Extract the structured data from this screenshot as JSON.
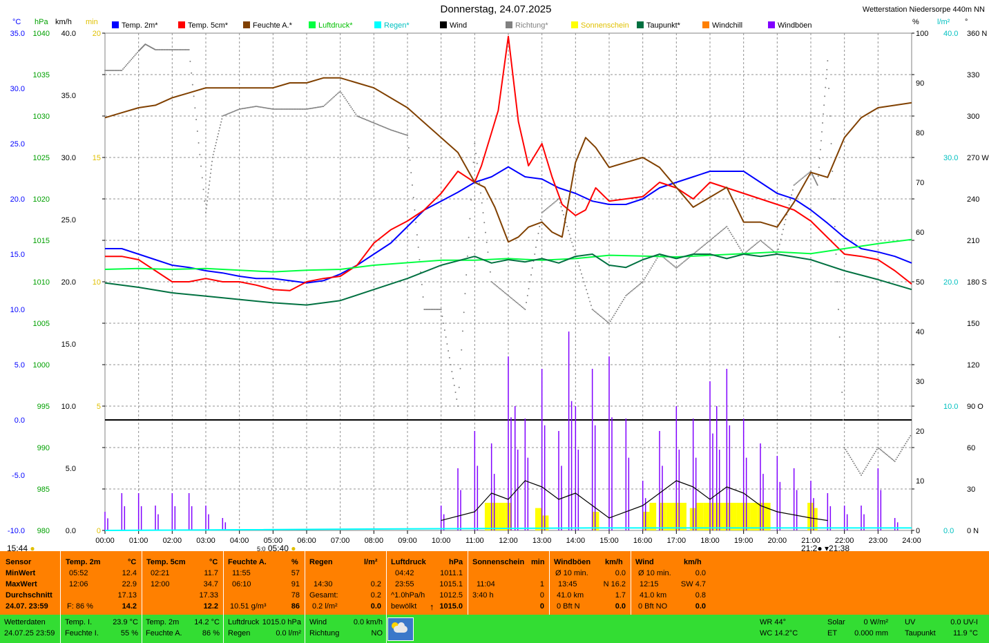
{
  "header": {
    "title": "Donnerstag, 24.07.2025",
    "station": "Wetterstation Niedersorpe 440m NN"
  },
  "unit_labels": {
    "c": "°C",
    "hpa": "hPa",
    "kmh": "km/h",
    "min": "min",
    "pct": "%",
    "lm2": "l/m²",
    "deg": "°"
  },
  "legend": [
    {
      "label": "Temp. 2m*",
      "color": "#0000ff"
    },
    {
      "label": "Temp. 5cm*",
      "color": "#ff0000"
    },
    {
      "label": "Feuchte A.*",
      "color": "#804000"
    },
    {
      "label": "Luftdruck*",
      "color": "#00ff40"
    },
    {
      "label": "Regen*",
      "color": "#00ffff"
    },
    {
      "label": "Wind",
      "color": "#000000"
    },
    {
      "label": "Richtung*",
      "color": "#808080"
    },
    {
      "label": "Sonnenschein",
      "color": "#ffff00"
    },
    {
      "label": "Taupunkt*",
      "color": "#007040"
    },
    {
      "label": "Windchill",
      "color": "#ff8000"
    },
    {
      "label": "Windböen",
      "color": "#8000ff"
    }
  ],
  "sun_marks": {
    "left_time": "15:44",
    "sunrise": "05:40",
    "sunrise_small": "5:0",
    "sunset": "21:38",
    "sunset_small": "21:2"
  },
  "chart_data": {
    "type": "line",
    "x_ticks": [
      "00:00",
      "01:00",
      "02:00",
      "03:00",
      "04:00",
      "05:00",
      "06:00",
      "07:00",
      "08:00",
      "09:00",
      "10:00",
      "11:00",
      "12:00",
      "13:00",
      "14:00",
      "15:00",
      "16:00",
      "17:00",
      "18:00",
      "19:00",
      "20:00",
      "21:00",
      "22:00",
      "23:00",
      "24:00"
    ],
    "axes": {
      "temp_c": {
        "range": [
          -10,
          35
        ],
        "ticks": [
          "35.0",
          "30.0",
          "25.0",
          "20.0",
          "15.0",
          "10.0",
          "5.0",
          "0.0",
          "-5.0",
          "-10.0"
        ],
        "color": "#0000ff"
      },
      "pressure_hpa": {
        "range": [
          980,
          1040
        ],
        "ticks": [
          "1040",
          "1035",
          "1030",
          "1025",
          "1020",
          "1015",
          "1010",
          "1005",
          "1000",
          "995",
          "990",
          "985",
          "980"
        ],
        "color": "#00a000"
      },
      "wind_kmh": {
        "range": [
          0,
          40
        ],
        "ticks": [
          "40.0",
          "35.0",
          "30.0",
          "25.0",
          "20.0",
          "15.0",
          "10.0",
          "5.0",
          "0.0"
        ],
        "color": "#000000"
      },
      "sun_min": {
        "range": [
          0,
          20
        ],
        "ticks": [
          "20",
          "15",
          "10",
          "5",
          "0"
        ],
        "color": "#e0c000"
      },
      "humidity_pct": {
        "range": [
          0,
          100
        ],
        "ticks": [
          "100",
          "90",
          "80",
          "70",
          "60",
          "50",
          "40",
          "30",
          "20",
          "10",
          "0"
        ],
        "color": "#000000"
      },
      "rain_lm2": {
        "range": [
          0,
          40
        ],
        "ticks": [
          "40.0",
          "30.0",
          "20.0",
          "10.0",
          "0.0"
        ],
        "color": "#00c0c0"
      },
      "direction_deg": {
        "range": [
          0,
          360
        ],
        "ticks": [
          "360 N",
          "330",
          "300",
          "270 W",
          "240",
          "210",
          "180 S",
          "150",
          "120",
          "90 O",
          "60",
          "30",
          "0 N"
        ],
        "color": "#000000"
      }
    },
    "series": [
      {
        "name": "Temp. 2m*",
        "axis": "temp_c",
        "color": "#0000ff",
        "x": [
          0,
          0.5,
          1,
          1.5,
          2,
          2.5,
          3,
          3.5,
          4,
          4.5,
          5,
          5.5,
          6,
          6.5,
          7,
          7.5,
          8,
          8.5,
          9,
          9.5,
          10,
          10.5,
          11,
          11.5,
          12,
          12.5,
          13,
          13.5,
          14,
          14.5,
          15,
          15.5,
          16,
          16.5,
          17,
          17.5,
          18,
          18.5,
          19,
          19.5,
          20,
          20.5,
          21,
          21.5,
          22,
          22.5,
          23,
          23.5,
          24
        ],
        "y": [
          15.5,
          15.5,
          15,
          14.5,
          14,
          13.8,
          13.5,
          13.3,
          13,
          12.8,
          12.8,
          12.6,
          12.4,
          12.6,
          13.2,
          14,
          15,
          16,
          17.5,
          19,
          19.8,
          20.6,
          21.5,
          22,
          22.9,
          22,
          21.8,
          21,
          20.5,
          19.8,
          19.5,
          19.5,
          20,
          21,
          21.5,
          22,
          22.5,
          22.5,
          22.5,
          21.5,
          20.5,
          20,
          19,
          17.8,
          16.5,
          15.5,
          15.2,
          14.8,
          14.2
        ]
      },
      {
        "name": "Temp. 5cm*",
        "axis": "temp_c",
        "color": "#ff0000",
        "x": [
          0,
          0.5,
          1,
          1.5,
          2,
          2.5,
          3,
          3.5,
          4,
          4.5,
          5,
          5.5,
          6,
          6.5,
          7,
          7.5,
          8,
          8.5,
          9,
          9.5,
          10,
          10.5,
          11,
          11.2,
          11.5,
          11.7,
          12,
          12.3,
          12.6,
          13,
          13.3,
          13.6,
          14,
          14.3,
          14.6,
          15,
          15.5,
          16,
          16.5,
          17,
          17.5,
          18,
          18.5,
          19,
          19.5,
          20,
          20.5,
          21,
          21.5,
          22,
          22.5,
          23,
          23.5,
          24
        ],
        "y": [
          14.8,
          14.8,
          14.5,
          13.5,
          12.5,
          12.5,
          12.8,
          12.5,
          12.5,
          12.2,
          11.8,
          11.7,
          12.5,
          12.8,
          13,
          14,
          16,
          17.2,
          18,
          19,
          20.5,
          22.5,
          21.5,
          23,
          26,
          28,
          34.7,
          27,
          23,
          25,
          22,
          19.5,
          18.5,
          19,
          21,
          19.8,
          20,
          20.2,
          21.5,
          21,
          20,
          21.5,
          21,
          20.5,
          20,
          19.5,
          19,
          18,
          16.5,
          15,
          14.8,
          14.5,
          13.5,
          12.3
        ]
      },
      {
        "name": "Feuchte A.*",
        "axis": "humidity_pct",
        "color": "#804000",
        "x": [
          0,
          0.5,
          1,
          1.5,
          2,
          2.5,
          3,
          3.5,
          4,
          4.5,
          5,
          5.5,
          6,
          6.5,
          7,
          7.5,
          8,
          8.5,
          9,
          9.5,
          10,
          10.5,
          11,
          11.3,
          11.6,
          12,
          12.3,
          12.6,
          13,
          13.3,
          13.6,
          14,
          14.3,
          14.6,
          15,
          15.5,
          16,
          16.5,
          17,
          17.5,
          18,
          18.5,
          19,
          19.5,
          20,
          20.5,
          21,
          21.5,
          22,
          22.5,
          23,
          23.5,
          24
        ],
        "y": [
          83,
          84,
          85,
          85.5,
          87,
          88,
          89,
          89,
          89,
          89,
          89,
          90,
          90,
          91,
          91,
          90,
          89,
          87,
          85,
          82,
          79,
          76,
          70,
          69,
          65,
          58,
          59,
          61,
          62,
          60,
          59,
          74,
          79,
          77,
          73,
          74,
          75,
          73,
          69,
          65,
          67,
          69,
          62,
          62,
          61,
          66,
          72,
          71,
          79,
          83,
          85,
          85.5,
          86
        ]
      },
      {
        "name": "Luftdruck*",
        "axis": "pressure_hpa",
        "color": "#00ff40",
        "x": [
          0,
          1,
          2,
          3,
          4,
          5,
          6,
          7,
          8,
          9,
          10,
          11,
          12,
          13,
          14,
          15,
          16,
          17,
          18,
          19,
          20,
          21,
          22,
          23,
          24
        ],
        "y": [
          1011.5,
          1011.6,
          1011.5,
          1011.6,
          1011.4,
          1011.2,
          1011.4,
          1011.5,
          1012.0,
          1012.3,
          1012.6,
          1012.6,
          1012.8,
          1012.6,
          1012.8,
          1013.2,
          1013.1,
          1013.0,
          1013.2,
          1013.4,
          1013.6,
          1013.4,
          1014.0,
          1014.6,
          1015.1
        ]
      },
      {
        "name": "Taupunkt*",
        "axis": "temp_c",
        "color": "#007040",
        "x": [
          0,
          1,
          2,
          3,
          4,
          5,
          6,
          7,
          8,
          9,
          10,
          11,
          11.5,
          12,
          12.5,
          13,
          13.5,
          14,
          14.5,
          15,
          15.5,
          16,
          16.5,
          17,
          17.5,
          18,
          18.5,
          19,
          19.5,
          20,
          21,
          22,
          23,
          24
        ],
        "y": [
          12.4,
          12,
          11.5,
          11.2,
          10.9,
          10.6,
          10.4,
          10.8,
          11.8,
          12.8,
          14,
          14.8,
          14.2,
          14.5,
          14.3,
          14.6,
          14.2,
          14.8,
          15,
          14,
          13.8,
          14.5,
          15,
          14.6,
          15,
          15,
          14.6,
          15,
          14.8,
          15,
          14.5,
          13.5,
          12.7,
          11.8
        ]
      },
      {
        "name": "Wind",
        "axis": "wind_kmh",
        "color": "#000000",
        "x": [
          10,
          11,
          11.5,
          12,
          12.5,
          13,
          13.5,
          14,
          14.5,
          15,
          16,
          16.5,
          17,
          17.5,
          18,
          18.5,
          19,
          19.5,
          20,
          21,
          21.5
        ],
        "y": [
          0.8,
          1.5,
          3.0,
          2.5,
          4.0,
          3.5,
          2.5,
          3.0,
          2.0,
          1.0,
          2.0,
          3.0,
          4.0,
          3.5,
          2.5,
          3.5,
          3.0,
          2.0,
          1.5,
          1.0,
          0.8
        ]
      },
      {
        "name": "Windböen",
        "axis": "wind_kmh",
        "color": "#8000ff",
        "x": [
          0,
          0.5,
          1,
          1.5,
          2,
          2.5,
          3,
          3.5,
          10,
          10.5,
          11,
          11.5,
          12,
          12.2,
          12.5,
          13,
          13.5,
          13.8,
          14,
          14.5,
          15,
          15.5,
          16,
          16.5,
          17,
          17.5,
          18,
          18.2,
          18.5,
          19,
          19.5,
          20,
          20.5,
          21,
          21.5,
          22,
          22.5,
          23,
          23.5
        ],
        "y": [
          1.5,
          3,
          3,
          2,
          3,
          3,
          2,
          1,
          2,
          5,
          8,
          7,
          14,
          10,
          9,
          13,
          8,
          16,
          10,
          13,
          14,
          9,
          4,
          8,
          10,
          9,
          12,
          10,
          13,
          9,
          7,
          6,
          5,
          4,
          3,
          2,
          2,
          5,
          1
        ]
      },
      {
        "name": "Regen*",
        "axis": "rain_lm2",
        "color": "#00ffff",
        "x": [
          0,
          14.5,
          24
        ],
        "y": [
          0,
          0.2,
          0.2
        ]
      },
      {
        "name": "Richtung*",
        "axis": "direction_deg",
        "color": "#808080",
        "x": [
          0,
          0.5,
          1,
          1.2,
          1.5,
          2,
          2.5,
          3,
          3.2,
          3.5,
          4,
          4.5,
          5,
          5.5,
          6,
          6.5,
          7,
          7.5,
          8,
          8.5,
          9,
          9.5,
          10,
          10.5,
          11,
          11.5,
          12,
          12.5,
          13,
          13.5,
          14,
          14.5,
          15,
          15.5,
          16,
          16.5,
          17,
          17.5,
          18,
          18.5,
          19,
          19.5,
          20,
          20.5,
          21,
          21.2,
          21.5,
          22,
          22.5,
          23,
          23.5,
          24
        ],
        "y": [
          333,
          333,
          347,
          352,
          348,
          348,
          348,
          230,
          270,
          300,
          305,
          307,
          305,
          305,
          305,
          307,
          318,
          300,
          295,
          290,
          286,
          160,
          160,
          90,
          280,
          180,
          170,
          160,
          230,
          240,
          200,
          160,
          150,
          170,
          180,
          200,
          190,
          200,
          210,
          220,
          200,
          210,
          200,
          250,
          260,
          250,
          340,
          60,
          40,
          60,
          50,
          70
        ]
      }
    ],
    "sunshine_minutes": {
      "axis": "sun_min",
      "color": "#ffff00",
      "x": [
        11.3,
        11.5,
        11.7,
        11.9,
        12.8,
        13.0,
        14.5,
        16.0,
        16.2,
        16.5,
        16.7,
        16.9,
        17.1,
        17.4,
        17.6,
        17.8,
        18.0,
        18.2,
        18.4,
        18.6,
        18.8,
        19.0,
        19.2,
        19.4,
        19.6,
        20.9,
        21.0
      ],
      "y": [
        1,
        1,
        1,
        0.8,
        0.6,
        0.4,
        0.5,
        0.5,
        1,
        1,
        0.8,
        1,
        0.9,
        0.6,
        1,
        1,
        1,
        1,
        1,
        1,
        1,
        1,
        1,
        1,
        1,
        1,
        0.6
      ]
    }
  },
  "stats_table": {
    "sensor": {
      "header": "Sensor",
      "min": "MinWert",
      "max": "MaxWert",
      "avg": "Durchschnitt",
      "now": "24.07. 23:59"
    },
    "temp2m": {
      "header": "Temp. 2m",
      "unit": "°C",
      "min_time": "05:52",
      "min_val": "12.4",
      "max_time": "12:06",
      "max_val": "22.9",
      "avg": "17.13",
      "now_label": "F: 86 %",
      "now_val": "14.2"
    },
    "temp5cm": {
      "header": "Temp. 5cm",
      "unit": "°C",
      "min_time": "02:21",
      "min_val": "11.7",
      "max_time": "12:00",
      "max_val": "34.7",
      "avg": "17.33",
      "now_val": "12.2"
    },
    "feuchte": {
      "header": "Feuchte A.",
      "unit": "%",
      "min_time": "11:55",
      "min_val": "57",
      "max_time": "06:10",
      "max_val": "91",
      "avg": "78",
      "now_label": "10.51 g/m³",
      "now_val": "86"
    },
    "regen": {
      "header": "Regen",
      "unit": "l/m²",
      "r1_time": "14:30",
      "r1_val": "0.2",
      "r2_label": "Gesamt:",
      "r2_val": "0.2",
      "now_label": "0.2 l/m²",
      "now_val": "0.0"
    },
    "luftdruck": {
      "header": "Luftdruck",
      "unit": "hPa",
      "min_time": "04:42",
      "min_val": "1011.1",
      "max_time": "23:55",
      "max_val": "1015.1",
      "avg_label": "^1.0hPa/h",
      "avg": "1012.5",
      "now_label": "bewölkt",
      "now_val": "1015.0",
      "arrow": "↑"
    },
    "sonne": {
      "header": "Sonnenschein",
      "unit": "min",
      "r1_time": "11:04",
      "r1_val": "1",
      "r2_time": "3:40 h",
      "r2_val": "0",
      "now_val": "0"
    },
    "boeen": {
      "header": "Windböen",
      "unit": "km/h",
      "r0_label": "Ø 10 min.",
      "r0_val": "0.0",
      "r1_time": "13:45",
      "r1_val": "N 16.2",
      "r2_label": "41.0 km",
      "r2_val": "1.7",
      "now_label": "0 Bft N",
      "now_val": "0.0"
    },
    "wind": {
      "header": "Wind",
      "unit": "km/h",
      "r0_label": "Ø 10 min.",
      "r0_val": "0.0",
      "r1_time": "12:15",
      "r1_val": "SW 4.7",
      "r2_label": "41.0 km",
      "r2_val": "0.8",
      "now_label": "0 Bft NO",
      "now_val": "0.0"
    }
  },
  "bottom_bar": {
    "wd_label": "Wetterdaten",
    "wd_time": "24.07.25 23:59",
    "tempi_label": "Temp. I.",
    "tempi_val": "23.9 °C",
    "feuchtei_label": "Feuchte I.",
    "feuchtei_val": "55 %",
    "temp2m_label": "Temp. 2m",
    "temp2m_val": "14.2 °C",
    "feuchtea_label": "Feuchte A.",
    "feuchtea_val": "86 %",
    "luftdruck_label": "Luftdruck",
    "luftdruck_val": "1015.0 hPa",
    "regen_label": "Regen",
    "regen_val": "0.0 l/m²",
    "wind_label": "Wind",
    "wind_val": "0.0 km/h",
    "richtung_label": "Richtung",
    "richtung_val": "NO",
    "wr": "WR 44°",
    "wc": "WC 14.2°C",
    "solar_label": "Solar",
    "solar_val": "0 W/m²",
    "et_label": "ET",
    "et_val": "0.000 mm",
    "uv_label": "UV",
    "uv_val": "0.0 UV-I",
    "taupunkt_label": "Taupunkt",
    "taupunkt_val": "11.9 °C"
  }
}
